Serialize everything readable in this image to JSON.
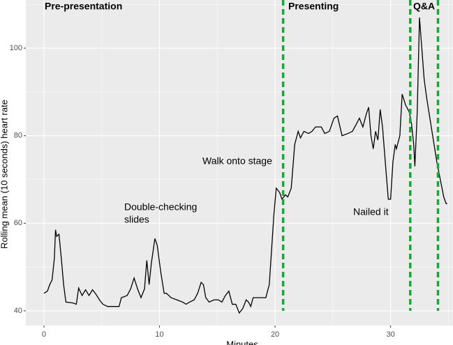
{
  "chart_data": {
    "type": "line",
    "x_label": "Minutes",
    "y_label": "Rolling mean (10 seconds) heart rate",
    "xlim": [
      -1.57,
      35.4
    ],
    "ylim": [
      36.65,
      111.0
    ],
    "xticks": [
      0,
      10,
      20,
      30
    ],
    "yticks": [
      40,
      60,
      80,
      100
    ],
    "minor_xticks": [
      5,
      15,
      25,
      35
    ],
    "minor_yticks": [
      50,
      70,
      90,
      110
    ],
    "grid": true,
    "x": [
      0,
      0.3,
      0.5,
      0.7,
      0.9,
      1.0,
      1.1,
      1.3,
      1.5,
      1.7,
      1.9,
      2.5,
      2.8,
      3.0,
      3.3,
      3.6,
      3.9,
      4.2,
      4.5,
      4.8,
      5.1,
      5.5,
      6.5,
      6.7,
      7.2,
      7.5,
      7.8,
      8.1,
      8.4,
      8.7,
      8.9,
      9.1,
      9.3,
      9.6,
      9.8,
      10.1,
      10.4,
      10.6,
      11.0,
      11.5,
      12.0,
      12.3,
      12.6,
      13.0,
      13.3,
      13.6,
      13.8,
      14.0,
      14.3,
      14.7,
      15.1,
      15.4,
      15.7,
      16.0,
      16.3,
      16.6,
      16.9,
      17.2,
      17.5,
      17.7,
      17.9,
      18.1,
      18.5,
      19.2,
      19.5,
      19.7,
      19.9,
      20.1,
      20.4,
      20.6,
      20.9,
      21.1,
      21.4,
      21.7,
      22.0,
      22.2,
      22.5,
      22.9,
      23.2,
      23.5,
      24.0,
      24.3,
      24.7,
      25.1,
      25.4,
      25.8,
      26.3,
      26.7,
      27.0,
      27.3,
      27.6,
      27.9,
      28.1,
      28.3,
      28.5,
      28.7,
      28.9,
      29.1,
      29.3,
      29.6,
      29.8,
      30.0,
      30.2,
      30.4,
      30.5,
      30.8,
      31.0,
      31.3,
      31.6,
      31.8,
      32.0,
      32.1,
      32.3,
      32.5,
      32.7,
      32.9,
      33.1,
      33.4,
      33.7,
      34.0,
      34.3,
      34.6,
      34.8,
      34.9
    ],
    "series": [
      {
        "color": "#000000",
        "values": [
          44,
          44.5,
          46,
          47,
          52,
          58.5,
          57,
          57.5,
          52,
          46,
          42,
          41.8,
          41.5,
          45.2,
          43.5,
          44.8,
          43.5,
          44.8,
          43.8,
          42.5,
          41.5,
          41,
          41,
          43,
          43.5,
          45,
          47.5,
          45,
          43,
          45,
          51.5,
          46,
          51,
          56.5,
          55,
          49,
          44,
          44,
          43,
          42.5,
          42,
          41.5,
          42,
          42.5,
          44,
          46.5,
          46,
          43,
          42,
          42.5,
          42.5,
          42,
          43.5,
          44.5,
          41.5,
          41.5,
          39.5,
          40.5,
          42.5,
          42,
          41,
          43,
          43,
          43,
          46,
          54,
          62,
          68,
          67,
          65.5,
          66.5,
          66,
          68,
          78,
          81,
          79.5,
          81,
          80.5,
          81,
          82,
          82,
          80.5,
          81,
          84,
          84.5,
          80,
          80.5,
          81,
          82.5,
          84,
          82,
          85,
          86.5,
          80,
          77,
          81,
          79,
          86,
          82,
          72,
          65.5,
          65.5,
          74,
          78,
          77,
          80,
          89.5,
          87,
          85.5,
          83,
          78,
          73,
          85,
          107,
          100,
          93,
          89,
          84,
          79,
          74,
          70,
          66,
          64.5,
          64.5
        ]
      }
    ],
    "vlines": {
      "x": [
        20.7,
        31.7,
        34.1
      ],
      "ymin": 40,
      "color": "#1fa33a"
    },
    "phases": [
      "Pre-presentation",
      "Presenting",
      "Q&A"
    ],
    "annotations": [
      "Walk onto stage",
      [
        "Double-checking",
        "slides"
      ],
      "Nailed it"
    ]
  }
}
